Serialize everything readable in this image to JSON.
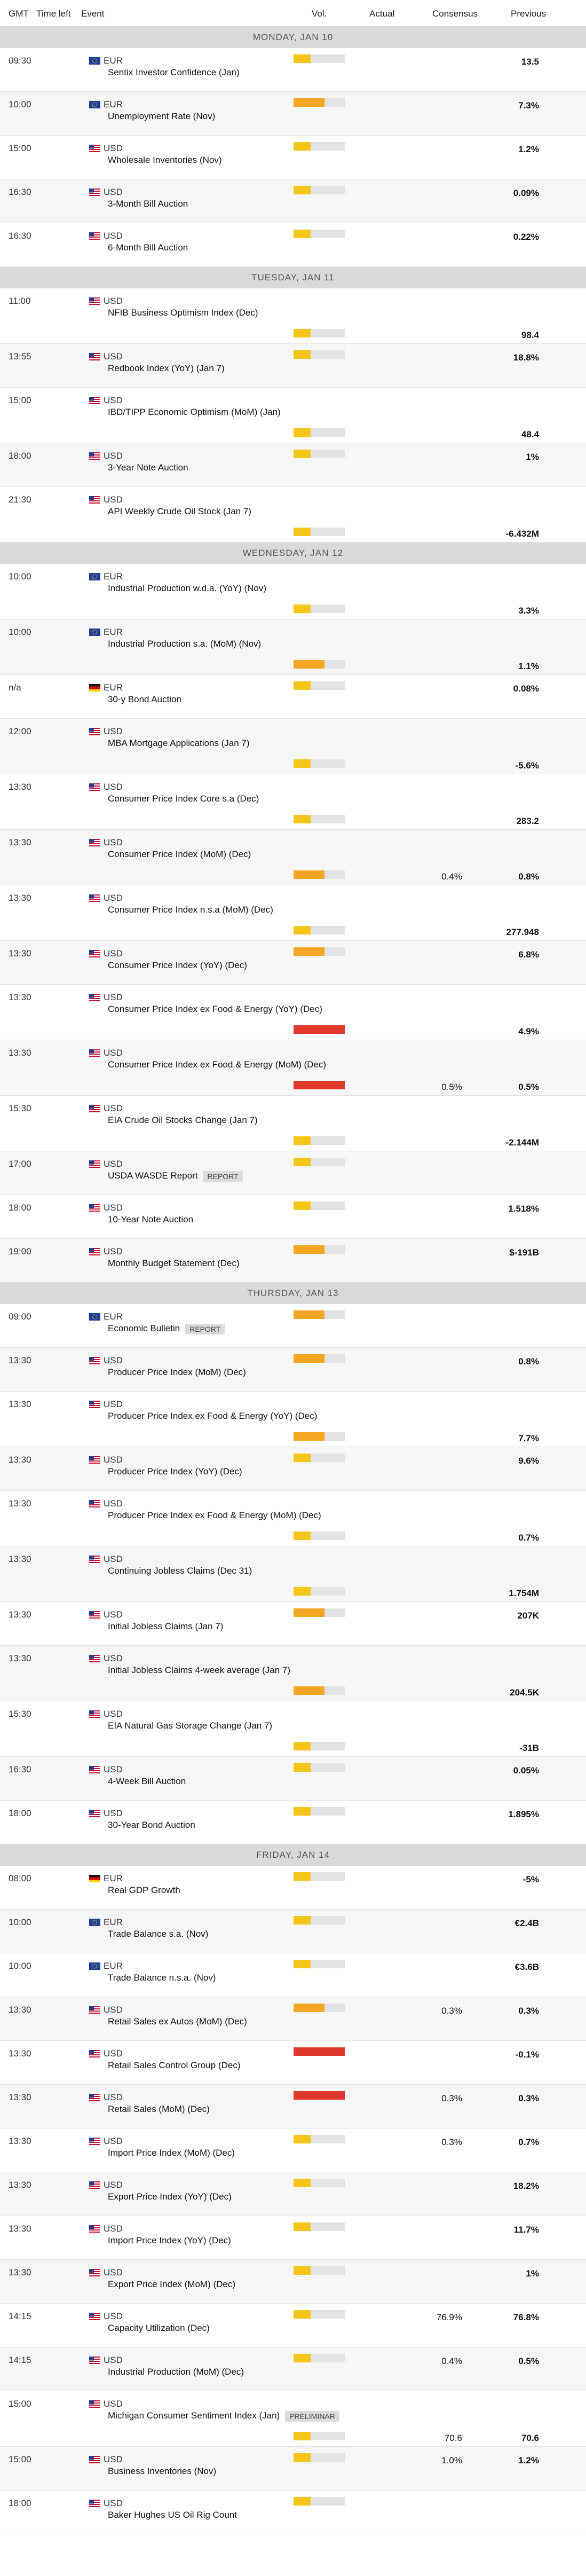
{
  "header": {
    "gmt": "GMT",
    "time_left": "Time left",
    "event": "Event",
    "vol": "Vol.",
    "actual": "Actual",
    "consensus": "Consensus",
    "previous": "Previous"
  },
  "colors": {
    "low": "#f5c518",
    "medium": "#f5a623",
    "high": "#e0392b",
    "empty": "#e3e3e3"
  },
  "days": [
    {
      "label": "MONDAY, JAN 10",
      "events": [
        {
          "time": "09:30",
          "flag": "eu-flag-icon",
          "cur": "EUR",
          "name": "Sentix Investor Confidence (Jan)",
          "vol": "low",
          "cons": "",
          "prev": "13.5",
          "layout": "c"
        },
        {
          "time": "10:00",
          "flag": "eu-flag-icon",
          "cur": "EUR",
          "name": "Unemployment Rate (Nov)",
          "vol": "medium",
          "cons": "",
          "prev": "7.3%",
          "layout": "c"
        },
        {
          "time": "15:00",
          "flag": "us-flag-icon",
          "cur": "USD",
          "name": "Wholesale Inventories (Nov)",
          "vol": "low",
          "cons": "",
          "prev": "1.2%",
          "layout": "c"
        },
        {
          "time": "16:30",
          "flag": "us-flag-icon",
          "cur": "USD",
          "name": "3-Month Bill Auction",
          "vol": "low",
          "cons": "",
          "prev": "0.09%",
          "layout": "c"
        },
        {
          "time": "16:30",
          "flag": "us-flag-icon",
          "cur": "USD",
          "name": "6-Month Bill Auction",
          "vol": "low",
          "cons": "",
          "prev": "0.22%",
          "layout": "c"
        }
      ]
    },
    {
      "label": "TUESDAY, JAN 11",
      "events": [
        {
          "time": "11:00",
          "flag": "us-flag-icon",
          "cur": "USD",
          "name": "NFIB Business Optimism Index (Dec)",
          "vol": "low",
          "cons": "",
          "prev": "98.4",
          "layout": "b"
        },
        {
          "time": "13:55",
          "flag": "us-flag-icon",
          "cur": "USD",
          "name": "Redbook Index (YoY) (Jan 7)",
          "vol": "low",
          "cons": "",
          "prev": "18.8%",
          "layout": "c"
        },
        {
          "time": "15:00",
          "flag": "us-flag-icon",
          "cur": "USD",
          "name": "IBD/TIPP Economic Optimism (MoM) (Jan)",
          "vol": "low",
          "cons": "",
          "prev": "48.4",
          "layout": "b"
        },
        {
          "time": "18:00",
          "flag": "us-flag-icon",
          "cur": "USD",
          "name": "3-Year Note Auction",
          "vol": "low",
          "cons": "",
          "prev": "1%",
          "layout": "c"
        },
        {
          "time": "21:30",
          "flag": "us-flag-icon",
          "cur": "USD",
          "name": "API Weekly Crude Oil Stock (Jan 7)",
          "vol": "low",
          "cons": "",
          "prev": "-6.432M",
          "layout": "b"
        }
      ]
    },
    {
      "label": "WEDNESDAY, JAN 12",
      "events": [
        {
          "time": "10:00",
          "flag": "eu-flag-icon",
          "cur": "EUR",
          "name": "Industrial Production w.d.a. (YoY) (Nov)",
          "vol": "low",
          "cons": "",
          "prev": "3.3%",
          "layout": "b"
        },
        {
          "time": "10:00",
          "flag": "eu-flag-icon",
          "cur": "EUR",
          "name": "Industrial Production s.a. (MoM) (Nov)",
          "vol": "medium",
          "cons": "",
          "prev": "1.1%",
          "layout": "b"
        },
        {
          "time": "n/a",
          "flag": "de-flag-icon",
          "cur": "EUR",
          "name": "30-y Bond Auction",
          "vol": "low",
          "cons": "",
          "prev": "0.08%",
          "layout": "c"
        },
        {
          "time": "12:00",
          "flag": "us-flag-icon",
          "cur": "USD",
          "name": "MBA Mortgage Applications (Jan 7)",
          "vol": "low",
          "cons": "",
          "prev": "-5.6%",
          "layout": "b"
        },
        {
          "time": "13:30",
          "flag": "us-flag-icon",
          "cur": "USD",
          "name": "Consumer Price Index Core s.a (Dec)",
          "vol": "low",
          "cons": "",
          "prev": "283.2",
          "layout": "b"
        },
        {
          "time": "13:30",
          "flag": "us-flag-icon",
          "cur": "USD",
          "name": "Consumer Price Index (MoM) (Dec)",
          "vol": "medium",
          "cons": "0.4%",
          "prev": "0.8%",
          "layout": "b"
        },
        {
          "time": "13:30",
          "flag": "us-flag-icon",
          "cur": "USD",
          "name": "Consumer Price Index n.s.a (MoM) (Dec)",
          "vol": "low",
          "cons": "",
          "prev": "277.948",
          "layout": "b"
        },
        {
          "time": "13:30",
          "flag": "us-flag-icon",
          "cur": "USD",
          "name": "Consumer Price Index (YoY) (Dec)",
          "vol": "medium",
          "cons": "",
          "prev": "6.8%",
          "layout": "c"
        },
        {
          "time": "13:30",
          "flag": "us-flag-icon",
          "cur": "USD",
          "name": "Consumer Price Index ex Food & Energy (YoY) (Dec)",
          "vol": "high",
          "cons": "",
          "prev": "4.9%",
          "layout": "b"
        },
        {
          "time": "13:30",
          "flag": "us-flag-icon",
          "cur": "USD",
          "name": "Consumer Price Index ex Food & Energy (MoM) (Dec)",
          "vol": "high",
          "cons": "0.5%",
          "prev": "0.5%",
          "layout": "b"
        },
        {
          "time": "15:30",
          "flag": "us-flag-icon",
          "cur": "USD",
          "name": "EIA Crude Oil Stocks Change (Jan 7)",
          "vol": "low",
          "cons": "",
          "prev": "-2.144M",
          "layout": "b"
        },
        {
          "time": "17:00",
          "flag": "us-flag-icon",
          "cur": "USD",
          "name": "USDA WASDE Report",
          "badge": "REPORT",
          "vol": "low",
          "cons": "",
          "prev": "",
          "layout": "c"
        },
        {
          "time": "18:00",
          "flag": "us-flag-icon",
          "cur": "USD",
          "name": "10-Year Note Auction",
          "vol": "low",
          "cons": "",
          "prev": "1.518%",
          "layout": "c"
        },
        {
          "time": "19:00",
          "flag": "us-flag-icon",
          "cur": "USD",
          "name": "Monthly Budget Statement (Dec)",
          "vol": "medium",
          "cons": "",
          "prev": "$-191B",
          "layout": "c"
        }
      ]
    },
    {
      "label": "THURSDAY, JAN 13",
      "events": [
        {
          "time": "09:00",
          "flag": "eu-flag-icon",
          "cur": "EUR",
          "name": "Economic Bulletin",
          "badge": "REPORT",
          "vol": "medium",
          "cons": "",
          "prev": "",
          "layout": "c"
        },
        {
          "time": "13:30",
          "flag": "us-flag-icon",
          "cur": "USD",
          "name": "Producer Price Index (MoM) (Dec)",
          "vol": "medium",
          "cons": "",
          "prev": "0.8%",
          "layout": "c"
        },
        {
          "time": "13:30",
          "flag": "us-flag-icon",
          "cur": "USD",
          "name": "Producer Price Index ex Food & Energy (YoY) (Dec)",
          "vol": "medium",
          "cons": "",
          "prev": "7.7%",
          "layout": "b"
        },
        {
          "time": "13:30",
          "flag": "us-flag-icon",
          "cur": "USD",
          "name": "Producer Price Index (YoY) (Dec)",
          "vol": "low",
          "cons": "",
          "prev": "9.6%",
          "layout": "c"
        },
        {
          "time": "13:30",
          "flag": "us-flag-icon",
          "cur": "USD",
          "name": "Producer Price Index ex Food & Energy (MoM) (Dec)",
          "vol": "low",
          "cons": "",
          "prev": "0.7%",
          "layout": "b"
        },
        {
          "time": "13:30",
          "flag": "us-flag-icon",
          "cur": "USD",
          "name": "Continuing Jobless Claims (Dec 31)",
          "vol": "low",
          "cons": "",
          "prev": "1.754M",
          "layout": "b"
        },
        {
          "time": "13:30",
          "flag": "us-flag-icon",
          "cur": "USD",
          "name": "Initial Jobless Claims (Jan 7)",
          "vol": "medium",
          "cons": "",
          "prev": "207K",
          "layout": "c"
        },
        {
          "time": "13:30",
          "flag": "us-flag-icon",
          "cur": "USD",
          "name": "Initial Jobless Claims 4-week average (Jan 7)",
          "vol": "medium",
          "cons": "",
          "prev": "204.5K",
          "layout": "b"
        },
        {
          "time": "15:30",
          "flag": "us-flag-icon",
          "cur": "USD",
          "name": "EIA Natural Gas Storage Change (Jan 7)",
          "vol": "low",
          "cons": "",
          "prev": "-31B",
          "layout": "b"
        },
        {
          "time": "16:30",
          "flag": "us-flag-icon",
          "cur": "USD",
          "name": "4-Week Bill Auction",
          "vol": "low",
          "cons": "",
          "prev": "0.05%",
          "layout": "c"
        },
        {
          "time": "18:00",
          "flag": "us-flag-icon",
          "cur": "USD",
          "name": "30-Year Bond Auction",
          "vol": "low",
          "cons": "",
          "prev": "1.895%",
          "layout": "c"
        }
      ]
    },
    {
      "label": "FRIDAY, JAN 14",
      "events": [
        {
          "time": "08:00",
          "flag": "de-flag-icon",
          "cur": "EUR",
          "name": "Real GDP Growth",
          "vol": "low",
          "cons": "",
          "prev": "-5%",
          "layout": "c"
        },
        {
          "time": "10:00",
          "flag": "eu-flag-icon",
          "cur": "EUR",
          "name": "Trade Balance s.a. (Nov)",
          "vol": "low",
          "cons": "",
          "prev": "€2.4B",
          "layout": "c"
        },
        {
          "time": "10:00",
          "flag": "eu-flag-icon",
          "cur": "EUR",
          "name": "Trade Balance n.s.a. (Nov)",
          "vol": "low",
          "cons": "",
          "prev": "€3.6B",
          "layout": "c"
        },
        {
          "time": "13:30",
          "flag": "us-flag-icon",
          "cur": "USD",
          "name": "Retail Sales ex Autos (MoM) (Dec)",
          "vol": "medium",
          "cons": "0.3%",
          "prev": "0.3%",
          "layout": "c"
        },
        {
          "time": "13:30",
          "flag": "us-flag-icon",
          "cur": "USD",
          "name": "Retail Sales Control Group (Dec)",
          "vol": "high",
          "cons": "",
          "prev": "-0.1%",
          "layout": "c"
        },
        {
          "time": "13:30",
          "flag": "us-flag-icon",
          "cur": "USD",
          "name": "Retail Sales (MoM) (Dec)",
          "vol": "high",
          "cons": "0.3%",
          "prev": "0.3%",
          "layout": "c"
        },
        {
          "time": "13:30",
          "flag": "us-flag-icon",
          "cur": "USD",
          "name": "Import Price Index (MoM) (Dec)",
          "vol": "low",
          "cons": "0.3%",
          "prev": "0.7%",
          "layout": "c"
        },
        {
          "time": "13:30",
          "flag": "us-flag-icon",
          "cur": "USD",
          "name": "Export Price Index (YoY) (Dec)",
          "vol": "low",
          "cons": "",
          "prev": "18.2%",
          "layout": "c"
        },
        {
          "time": "13:30",
          "flag": "us-flag-icon",
          "cur": "USD",
          "name": "Import Price Index (YoY) (Dec)",
          "vol": "low",
          "cons": "",
          "prev": "11.7%",
          "layout": "c"
        },
        {
          "time": "13:30",
          "flag": "us-flag-icon",
          "cur": "USD",
          "name": "Export Price Index (MoM) (Dec)",
          "vol": "low",
          "cons": "",
          "prev": "1%",
          "layout": "c"
        },
        {
          "time": "14:15",
          "flag": "us-flag-icon",
          "cur": "USD",
          "name": "Capacity Utilization (Dec)",
          "vol": "low",
          "cons": "76.9%",
          "prev": "76.8%",
          "layout": "c"
        },
        {
          "time": "14:15",
          "flag": "us-flag-icon",
          "cur": "USD",
          "name": "Industrial Production (MoM) (Dec)",
          "vol": "low",
          "cons": "0.4%",
          "prev": "0.5%",
          "layout": "c"
        },
        {
          "time": "15:00",
          "flag": "us-flag-icon",
          "cur": "USD",
          "name": "Michigan Consumer Sentiment Index (Jan)",
          "badge": "PRELIMINAR",
          "vol": "low",
          "cons": "70.6",
          "prev": "70.6",
          "layout": "b"
        },
        {
          "time": "15:00",
          "flag": "us-flag-icon",
          "cur": "USD",
          "name": "Business Inventories (Nov)",
          "vol": "low",
          "cons": "1.0%",
          "prev": "1.2%",
          "layout": "c"
        },
        {
          "time": "18:00",
          "flag": "us-flag-icon",
          "cur": "USD",
          "name": "Baker Hughes US Oil Rig Count",
          "vol": "low",
          "cons": "",
          "prev": "",
          "layout": "c"
        }
      ]
    }
  ]
}
